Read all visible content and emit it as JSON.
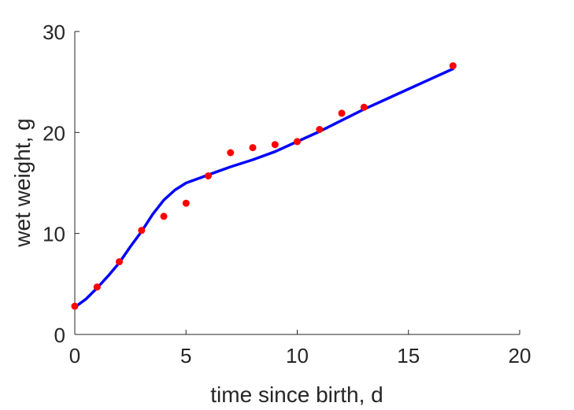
{
  "chart_data": {
    "type": "scatter",
    "title": "",
    "xlabel": "time since birth, d",
    "ylabel": "wet weight, g",
    "xlim": [
      0,
      20
    ],
    "ylim": [
      0,
      30
    ],
    "xticks": [
      0,
      5,
      10,
      15,
      20
    ],
    "yticks": [
      0,
      10,
      20,
      30
    ],
    "grid": false,
    "box": false,
    "series": [
      {
        "kind": "points",
        "color": "#ff0000",
        "x": [
          0,
          1,
          2,
          3,
          4,
          5,
          6,
          7,
          8,
          9,
          10,
          11,
          12,
          13,
          17
        ],
        "y": [
          2.8,
          4.7,
          7.2,
          10.3,
          11.7,
          13.0,
          15.7,
          18.0,
          18.5,
          18.8,
          19.1,
          20.3,
          21.9,
          22.5,
          26.6
        ]
      },
      {
        "kind": "line",
        "color": "#0000ff",
        "x": [
          0,
          0.5,
          1,
          1.5,
          2,
          2.5,
          3,
          3.5,
          4,
          4.5,
          5,
          5.5,
          6,
          7,
          8,
          9,
          10,
          11,
          12,
          13,
          14,
          15,
          16,
          17
        ],
        "y": [
          2.7,
          3.5,
          4.6,
          5.8,
          7.1,
          8.7,
          10.2,
          11.9,
          13.3,
          14.3,
          15.0,
          15.4,
          15.8,
          16.6,
          17.3,
          18.1,
          19.1,
          20.1,
          21.2,
          22.3,
          23.3,
          24.3,
          25.3,
          26.3
        ]
      }
    ]
  }
}
